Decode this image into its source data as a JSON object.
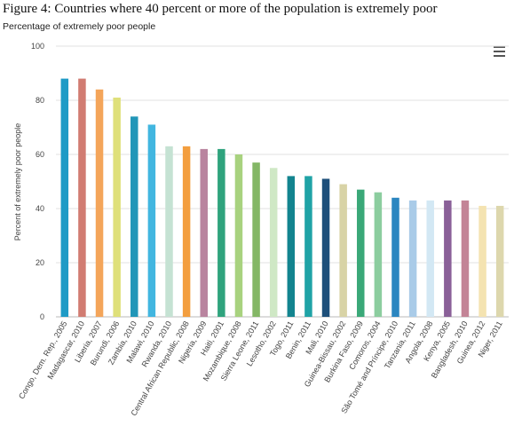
{
  "title": "Figure 4: Countries where 40 percent or more of the population is extremely poor",
  "subtitle": "Percentage of extremely poor people",
  "menu_icon": "hamburger-menu-icon",
  "chart_data": {
    "type": "bar",
    "title": "Figure 4: Countries where 40 percent or more of the population is extremely poor",
    "subtitle": "Percentage of extremely poor people",
    "xlabel": "",
    "ylabel": "Percent of extremely poor people",
    "ylim": [
      0,
      100
    ],
    "yticks": [
      0,
      20,
      40,
      60,
      80,
      100
    ],
    "grid": true,
    "categories": [
      "Congo, Dem. Rep., 2005",
      "Madagascar, 2010",
      "Liberia, 2007",
      "Burundi, 2006",
      "Zambia, 2010",
      "Malawi, 2010",
      "Rwanda, 2010",
      "Central African Republic, 2008",
      "Nigeria, 2009",
      "Haiti, 2001",
      "Mozambique, 2008",
      "Sierra Leone, 2011",
      "Lesotho, 2002",
      "Togo, 2011",
      "Benin, 2011",
      "Mali, 2010",
      "Guinea-Bissau, 2002",
      "Burkina Faso, 2009",
      "Comoros, 2004",
      "São Tomé and Príncipe, 2010",
      "Tanzania, 2011",
      "Angola, 2008",
      "Kenya, 2005",
      "Bangladesh, 2010",
      "Guinea, 2012",
      "Niger, 2011"
    ],
    "values": [
      88,
      88,
      84,
      81,
      74,
      71,
      63,
      63,
      62,
      62,
      60,
      57,
      55,
      52,
      52,
      51,
      49,
      47,
      46,
      44,
      43,
      43,
      43,
      43,
      41,
      41
    ],
    "colors": [
      "#1f9bc6",
      "#d17c72",
      "#f4a55a",
      "#dfe07a",
      "#2196b8",
      "#42b6e0",
      "#c5e2d3",
      "#f39e3f",
      "#b9849f",
      "#2fa37d",
      "#a8d27f",
      "#84b766",
      "#cfe8c5",
      "#13848f",
      "#20a3a6",
      "#1d4f7a",
      "#d8d3a6",
      "#3aa878",
      "#8ccd9f",
      "#2b86c0",
      "#a9cbe8",
      "#d3e8f4",
      "#8a6098",
      "#c38496",
      "#f4e3b1",
      "#ddd7ad"
    ]
  }
}
